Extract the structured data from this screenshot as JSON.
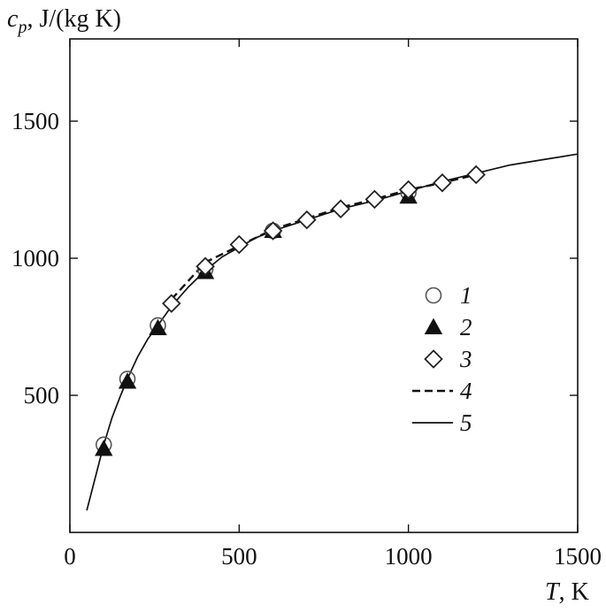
{
  "chart_data": {
    "type": "scatter",
    "ylabel_symbol": "c",
    "ylabel_subscript": "p",
    "ylabel_units": ", J/(kg K)",
    "xlabel_symbol": "T",
    "xlabel_units": ", K",
    "xlim": [
      0,
      1500
    ],
    "ylim": [
      0,
      1800
    ],
    "x_ticks": [
      0,
      500,
      1000,
      1500
    ],
    "y_ticks": [
      500,
      1000,
      1500
    ],
    "x_tick_labels": [
      "0",
      "500",
      "1000",
      "1500"
    ],
    "y_tick_labels": [
      "500",
      "1000",
      "1500"
    ],
    "grid": false,
    "legend_position": "center-right",
    "series": [
      {
        "name": "1",
        "kind": "markers",
        "marker": "circle-open",
        "points": [
          [
            100,
            320
          ],
          [
            170,
            560
          ],
          [
            260,
            755
          ],
          [
            400,
            960
          ],
          [
            600,
            1100
          ],
          [
            1000,
            1240
          ]
        ]
      },
      {
        "name": "2",
        "kind": "markers",
        "marker": "triangle-filled",
        "points": [
          [
            100,
            305
          ],
          [
            170,
            550
          ],
          [
            260,
            745
          ],
          [
            400,
            950
          ],
          [
            600,
            1100
          ],
          [
            1000,
            1225
          ]
        ]
      },
      {
        "name": "3",
        "kind": "markers",
        "marker": "diamond-open",
        "points": [
          [
            300,
            835
          ],
          [
            400,
            970
          ],
          [
            500,
            1050
          ],
          [
            600,
            1100
          ],
          [
            700,
            1140
          ],
          [
            800,
            1180
          ],
          [
            900,
            1215
          ],
          [
            1000,
            1250
          ],
          [
            1100,
            1275
          ],
          [
            1200,
            1305
          ]
        ]
      },
      {
        "name": "4",
        "kind": "line",
        "style": "dashed",
        "points": [
          [
            300,
            850
          ],
          [
            400,
            985
          ],
          [
            500,
            1045
          ],
          [
            600,
            1105
          ],
          [
            700,
            1145
          ],
          [
            800,
            1185
          ],
          [
            900,
            1215
          ],
          [
            1000,
            1250
          ],
          [
            1100,
            1275
          ],
          [
            1200,
            1305
          ]
        ]
      },
      {
        "name": "5",
        "kind": "line",
        "style": "solid",
        "points": [
          [
            50,
            80
          ],
          [
            75,
            200
          ],
          [
            100,
            320
          ],
          [
            125,
            420
          ],
          [
            150,
            500
          ],
          [
            170,
            560
          ],
          [
            200,
            640
          ],
          [
            230,
            705
          ],
          [
            260,
            755
          ],
          [
            300,
            825
          ],
          [
            350,
            895
          ],
          [
            400,
            955
          ],
          [
            450,
            1005
          ],
          [
            500,
            1040
          ],
          [
            550,
            1075
          ],
          [
            600,
            1100
          ],
          [
            700,
            1140
          ],
          [
            800,
            1180
          ],
          [
            900,
            1210
          ],
          [
            1000,
            1245
          ],
          [
            1100,
            1280
          ],
          [
            1200,
            1310
          ],
          [
            1300,
            1340
          ],
          [
            1400,
            1360
          ],
          [
            1500,
            1380
          ]
        ]
      }
    ]
  }
}
